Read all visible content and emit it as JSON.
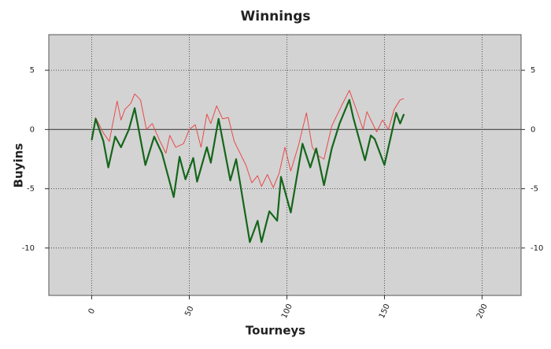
{
  "chart_data": {
    "type": "line",
    "title": "Winnings",
    "x_label": "Tourneys",
    "y_label": "Buyins",
    "xlim": [
      -22,
      220
    ],
    "ylim": [
      -14,
      8
    ],
    "xticks": [
      0,
      50,
      100,
      150,
      200
    ],
    "yticks": [
      -10,
      -5,
      0,
      5
    ],
    "grid": true,
    "background": "#d3d3d3",
    "series": [
      {
        "color": "#e84a4a",
        "width": 1,
        "x": [
          0,
          2,
          6,
          9,
          13,
          15,
          17,
          20,
          22,
          25,
          28,
          31,
          35,
          38,
          40,
          43,
          47,
          50,
          53,
          56,
          59,
          61,
          64,
          67,
          70,
          73,
          76,
          79,
          82,
          85,
          87,
          90,
          93,
          96,
          99,
          102,
          106,
          110,
          113,
          116,
          119,
          123,
          128,
          132,
          136,
          139,
          141,
          146,
          149,
          152,
          155,
          158,
          160
        ],
        "values": [
          -0.9,
          1,
          -0.3,
          -1,
          2.4,
          0.8,
          1.7,
          2.2,
          3,
          2.5,
          0,
          0.5,
          -1,
          -2,
          -0.5,
          -1.5,
          -1.2,
          0,
          0.4,
          -1.5,
          1.3,
          0.5,
          2,
          0.9,
          1,
          -1,
          -2,
          -3,
          -4.5,
          -3.9,
          -4.8,
          -3.8,
          -4.9,
          -3.7,
          -1.5,
          -3.5,
          -1.3,
          1.4,
          -1.5,
          -2.2,
          -2.5,
          0.3,
          2,
          3.3,
          1.5,
          0,
          1.5,
          -0.2,
          0.8,
          0,
          1.7,
          2.5,
          2.6
        ]
      },
      {
        "color": "#14661a",
        "width": 2.2,
        "x": [
          0,
          2,
          6,
          8.5,
          12,
          15,
          19,
          22,
          27.5,
          32,
          36,
          42,
          45,
          48,
          52,
          54,
          59,
          61,
          65,
          71,
          74,
          81,
          85,
          87,
          91,
          95,
          97,
          102,
          108,
          112,
          115,
          119,
          123,
          127,
          132,
          134,
          140,
          143,
          145,
          150,
          156,
          158,
          160
        ],
        "values": [
          -0.9,
          0.9,
          -1,
          -3.2,
          -0.6,
          -1.5,
          0,
          1.8,
          -3,
          -0.6,
          -2,
          -5.7,
          -2.3,
          -4.2,
          -2.4,
          -4.4,
          -1.5,
          -2.8,
          0.9,
          -4.3,
          -2.5,
          -9.5,
          -7.7,
          -9.5,
          -6.9,
          -7.7,
          -4,
          -7,
          -1.2,
          -3.2,
          -1.6,
          -4.7,
          -1.6,
          0.5,
          2.5,
          1,
          -2.6,
          -0.5,
          -0.8,
          -3,
          1.4,
          0.5,
          1.3
        ]
      }
    ]
  }
}
